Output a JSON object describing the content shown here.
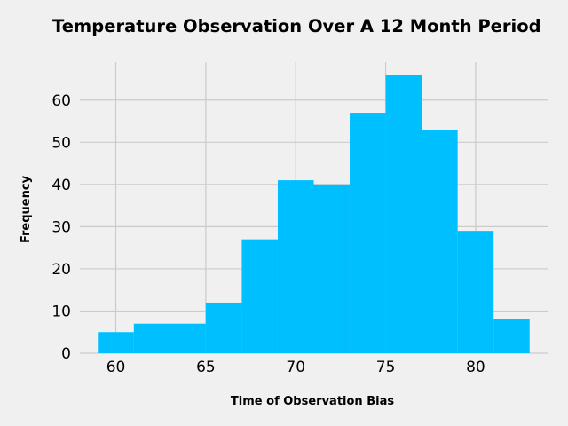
{
  "chart_data": {
    "type": "bar",
    "subtype": "histogram",
    "title": "Temperature Observation Over A 12 Month Period",
    "xlabel": "Time of Observation Bias",
    "ylabel": "Frequency",
    "bin_edges": [
      59,
      61,
      63,
      65,
      67,
      69,
      71,
      73,
      75,
      77,
      79,
      81,
      83
    ],
    "values": [
      5,
      7,
      7,
      12,
      27,
      41,
      40,
      57,
      66,
      53,
      29,
      8
    ],
    "xlim": [
      58,
      84
    ],
    "ylim": [
      0,
      69
    ],
    "xticks": [
      60,
      65,
      70,
      75,
      80
    ],
    "yticks": [
      0,
      10,
      20,
      30,
      40,
      50,
      60
    ],
    "grid": true,
    "bar_color": "#00bfff",
    "background_color": "#f0f0f0",
    "grid_color": "#cbcbcb"
  }
}
